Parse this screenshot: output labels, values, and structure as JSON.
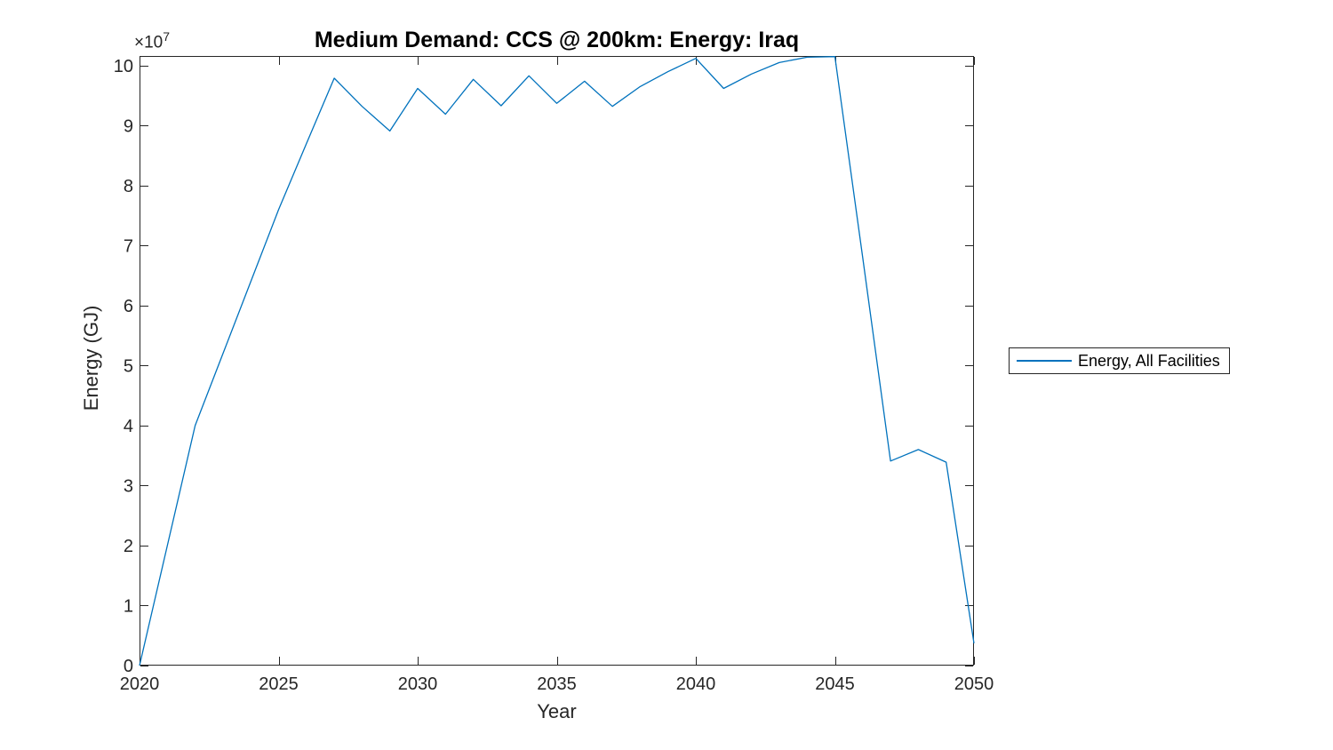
{
  "chart_data": {
    "type": "line",
    "title": "Medium Demand: CCS @ 200km: Energy: Iraq",
    "xlabel": "Year",
    "ylabel": "Energy (GJ)",
    "y_multiplier": {
      "base": "×10",
      "exponent": "7"
    },
    "xlim": [
      2020,
      2050
    ],
    "ylim": [
      0,
      101600000
    ],
    "x_ticks": [
      2020,
      2025,
      2030,
      2035,
      2040,
      2045,
      2050
    ],
    "y_ticks": [
      0,
      1,
      2,
      3,
      4,
      5,
      6,
      7,
      8,
      9,
      10
    ],
    "y_tick_unit": 10000000,
    "grid": false,
    "box": true,
    "axis_color": "#262626",
    "legend": {
      "position": "right-outside",
      "entries": [
        {
          "label": "Energy, All Facilities",
          "color": "#0072BD"
        }
      ]
    },
    "series": [
      {
        "name": "Energy, All Facilities",
        "color": "#0072BD",
        "x": [
          2020,
          2021,
          2022,
          2023,
          2024,
          2025,
          2026,
          2027,
          2028,
          2029,
          2030,
          2031,
          2032,
          2033,
          2034,
          2035,
          2036,
          2037,
          2038,
          2039,
          2040,
          2041,
          2042,
          2043,
          2044,
          2045,
          2046,
          2047,
          2048,
          2049,
          2050
        ],
        "values": [
          0,
          20000000,
          40000000,
          52000000,
          64000000,
          76000000,
          87000000,
          97900000,
          93200000,
          89100000,
          96200000,
          91900000,
          97700000,
          93300000,
          98300000,
          93700000,
          97400000,
          93200000,
          96500000,
          99000000,
          101200000,
          96200000,
          98600000,
          100500000,
          101400000,
          101500000,
          68000000,
          34100000,
          36000000,
          33900000,
          3700000
        ]
      }
    ]
  }
}
